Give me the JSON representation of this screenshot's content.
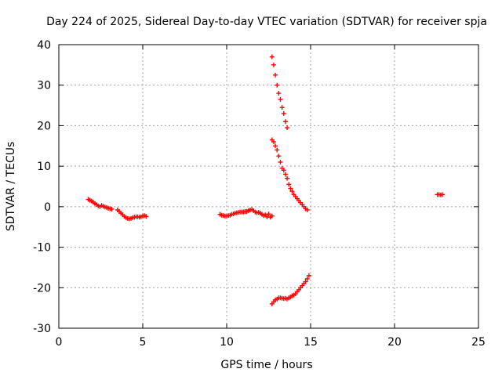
{
  "chart_data": {
    "type": "scatter",
    "title": "Day 224 of 2025, Sidereal Day-to-day VTEC variation (SDTVAR) for receiver spja",
    "xlabel": "GPS time / hours",
    "ylabel": "SDTVAR / TECUs",
    "xlim": [
      0,
      25
    ],
    "ylim": [
      -30,
      40
    ],
    "xticks": [
      0,
      5,
      10,
      15,
      20,
      25
    ],
    "yticks": [
      -30,
      -20,
      -10,
      0,
      10,
      20,
      30,
      40
    ],
    "grid": true,
    "marker": "plus",
    "color": "#ff0000",
    "series": [
      {
        "x": [
          1.75,
          1.85,
          1.95,
          2.05,
          2.15,
          2.25,
          2.35,
          2.45,
          2.55,
          2.65,
          2.75,
          2.85,
          2.95,
          3.05,
          3.15
        ],
        "y": [
          1.8,
          1.6,
          1.4,
          1.1,
          0.8,
          0.5,
          0.2,
          0.0,
          0.3,
          0.1,
          -0.1,
          -0.2,
          -0.4,
          -0.5,
          -0.6
        ]
      },
      {
        "x": [
          3.5,
          3.6,
          3.7,
          3.8,
          3.9,
          4.0,
          4.1,
          4.2,
          4.3,
          4.4,
          4.5,
          4.6,
          4.7,
          4.8,
          4.9,
          5.0,
          5.1,
          5.2
        ],
        "y": [
          -0.8,
          -1.2,
          -1.6,
          -2.0,
          -2.4,
          -2.7,
          -2.9,
          -3.0,
          -2.9,
          -2.7,
          -2.6,
          -2.5,
          -2.5,
          -2.6,
          -2.5,
          -2.3,
          -2.2,
          -2.4
        ]
      },
      {
        "x": [
          9.6,
          9.7,
          9.8,
          9.9,
          10.0,
          10.1,
          10.2,
          10.3,
          10.4,
          10.5,
          10.6,
          10.7,
          10.8,
          10.9,
          11.0,
          11.1,
          11.2,
          11.3,
          11.4,
          11.5,
          11.6,
          11.7,
          11.8,
          11.9,
          12.0,
          12.1,
          12.2,
          12.3,
          12.4,
          12.5,
          12.6,
          12.7
        ],
        "y": [
          -1.9,
          -2.1,
          -2.2,
          -2.3,
          -2.3,
          -2.2,
          -2.1,
          -1.9,
          -1.8,
          -1.6,
          -1.5,
          -1.4,
          -1.3,
          -1.3,
          -1.3,
          -1.2,
          -1.2,
          -1.0,
          -0.8,
          -0.7,
          -1.0,
          -1.3,
          -1.5,
          -1.4,
          -1.6,
          -1.9,
          -2.2,
          -2.0,
          -2.5,
          -1.8,
          -2.6,
          -2.3
        ]
      },
      {
        "x": [
          12.7,
          12.8,
          12.9,
          13.0,
          13.1,
          13.2,
          13.3,
          13.4,
          13.5,
          13.6
        ],
        "y": [
          37.0,
          35.0,
          32.5,
          30.0,
          28.0,
          26.5,
          24.5,
          23.0,
          21.0,
          19.5
        ]
      },
      {
        "x": [
          12.7,
          12.8,
          12.9,
          13.0,
          13.1,
          13.2,
          13.3,
          13.4,
          13.5,
          13.6,
          13.7,
          13.8,
          13.9,
          14.0,
          14.1,
          14.2,
          14.3,
          14.4,
          14.5,
          14.6,
          14.7,
          14.8
        ],
        "y": [
          16.5,
          16.0,
          15.0,
          14.0,
          12.5,
          11.0,
          9.5,
          9.0,
          8.0,
          7.0,
          5.5,
          4.5,
          3.8,
          3.0,
          2.5,
          2.0,
          1.5,
          1.0,
          0.5,
          0.0,
          -0.5,
          -0.8
        ]
      },
      {
        "x": [
          12.7,
          12.8,
          12.9,
          13.0,
          13.1,
          13.2,
          13.3,
          13.4,
          13.5,
          13.6,
          13.7,
          13.8,
          13.9,
          14.0,
          14.1,
          14.2,
          14.3,
          14.4,
          14.5,
          14.6,
          14.7,
          14.8,
          14.9
        ],
        "y": [
          -24.0,
          -23.5,
          -23.0,
          -22.8,
          -22.5,
          -22.5,
          -22.6,
          -22.7,
          -22.6,
          -22.8,
          -22.5,
          -22.3,
          -22.0,
          -21.8,
          -21.5,
          -21.0,
          -20.5,
          -20.0,
          -19.5,
          -19.0,
          -18.5,
          -17.8,
          -17.0
        ]
      },
      {
        "x": [
          22.55,
          22.65,
          22.75,
          22.85
        ],
        "y": [
          3.0,
          3.0,
          2.9,
          3.0
        ]
      }
    ]
  }
}
